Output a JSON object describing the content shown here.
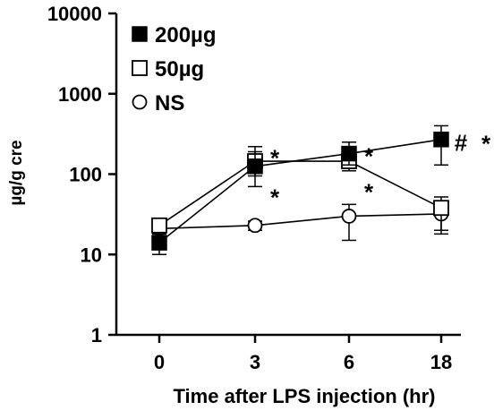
{
  "chart_data": {
    "type": "line",
    "xlabel": "Time after LPS injection (hr)",
    "ylabel": "µg/g cre",
    "yscale": "log",
    "ylim": [
      1,
      10000
    ],
    "y_ticks": [
      "1",
      "10",
      "100",
      "1000",
      "10000"
    ],
    "categories": [
      "0",
      "3",
      "6",
      "18"
    ],
    "series": [
      {
        "name": "200µg",
        "marker": "filled-square",
        "values": [
          14,
          125,
          180,
          270
        ],
        "err_low": [
          10,
          70,
          130,
          130
        ],
        "err_high": [
          17,
          190,
          250,
          400
        ]
      },
      {
        "name": "50µg",
        "marker": "open-square",
        "values": [
          23,
          145,
          145,
          38
        ],
        "err_low": [
          18,
          95,
          110,
          20
        ],
        "err_high": [
          28,
          220,
          190,
          52
        ]
      },
      {
        "name": "NS",
        "marker": "open-circle",
        "values": [
          21,
          23,
          30,
          32
        ],
        "err_low": [
          18,
          20,
          15,
          18
        ],
        "err_high": [
          24,
          26,
          42,
          46
        ]
      }
    ],
    "annotations": [
      {
        "text": "*",
        "x": "3",
        "y": 200
      },
      {
        "text": "*",
        "x": "3",
        "y": 65
      },
      {
        "text": "*",
        "x": "6",
        "y": 210
      },
      {
        "text": "*",
        "x": "6",
        "y": 75
      },
      {
        "text": "#",
        "x": "18",
        "y": 310
      },
      {
        "text": "*",
        "x": "18",
        "y": 300
      }
    ],
    "legend": "top-left",
    "grid": false
  }
}
